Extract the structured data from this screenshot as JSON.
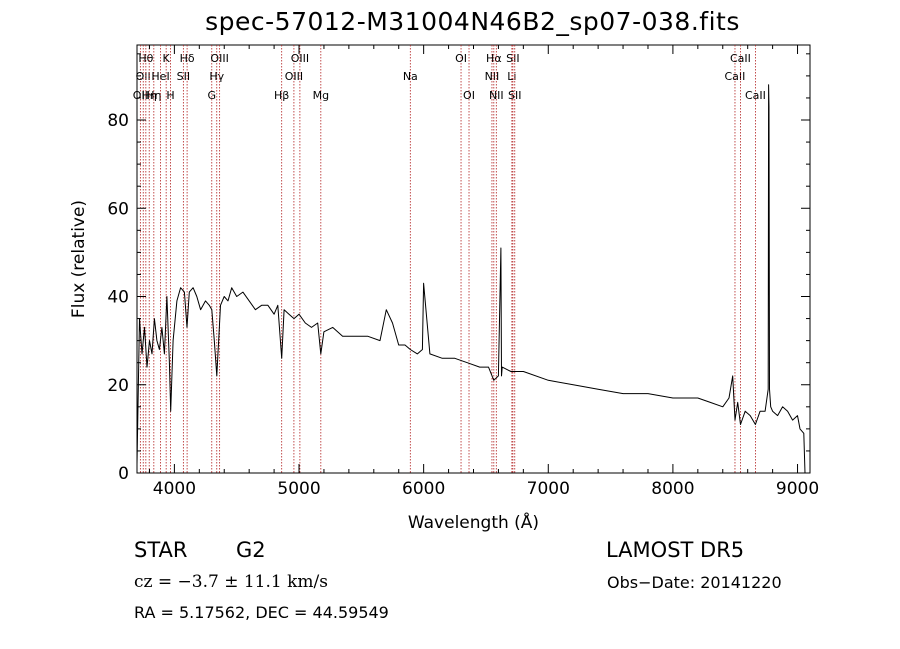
{
  "title": "spec-57012-M31004N46B2_sp07-038.fits",
  "footer": {
    "object_class": "STAR",
    "subclass": "G2",
    "survey": "LAMOST  DR5",
    "velocity": "cz = −3.7 ± 11.1 km/s",
    "obs_date": "Obs−Date: 20141220",
    "coords": "RA =    5.17562, DEC =  44.59549"
  },
  "colors": {
    "spectrum": "#000000",
    "line_markers": "#b22222",
    "axes": "#000000"
  },
  "chart_data": {
    "type": "line",
    "title": "spec-57012-M31004N46B2_sp07-038.fits",
    "xlabel": "Wavelength (Å)",
    "ylabel": "Flux (relative)",
    "xlim": [
      3700,
      9100
    ],
    "ylim": [
      0,
      97
    ],
    "xticks": [
      4000,
      5000,
      6000,
      7000,
      8000,
      9000
    ],
    "yticks": [
      0,
      20,
      40,
      60,
      80
    ],
    "grid": false,
    "series": [
      {
        "x": [
          3700,
          3720,
          3740,
          3760,
          3780,
          3800,
          3820,
          3840,
          3860,
          3880,
          3900,
          3920,
          3940,
          3960,
          3970,
          3990,
          4020,
          4050,
          4080,
          4101,
          4120,
          4150,
          4180,
          4210,
          4250,
          4280,
          4300,
          4320,
          4340,
          4370,
          4400,
          4430,
          4460,
          4500,
          4550,
          4600,
          4650,
          4700,
          4750,
          4800,
          4830,
          4861,
          4880,
          4920,
          4960,
          5000,
          5050,
          5100,
          5150,
          5175,
          5200,
          5270,
          5350,
          5450,
          5550,
          5650,
          5700,
          5750,
          5800,
          5850,
          5893,
          5950,
          5990,
          6000,
          6050,
          6150,
          6250,
          6350,
          6450,
          6520,
          6563,
          6600,
          6620,
          6625,
          6630,
          6700,
          6800,
          7000,
          7200,
          7400,
          7600,
          7800,
          8000,
          8200,
          8300,
          8400,
          8450,
          8480,
          8498,
          8520,
          8542,
          8580,
          8620,
          8662,
          8700,
          8740,
          8765,
          8768,
          8771,
          8775,
          8785,
          8800,
          8840,
          8880,
          8920,
          8960,
          9000,
          9020,
          9050,
          9060
        ],
        "y": [
          2,
          35,
          27,
          33,
          24,
          30,
          27,
          35,
          30,
          28,
          33,
          27,
          40,
          25,
          14,
          30,
          39,
          42,
          41,
          33,
          41,
          42,
          40,
          37,
          39,
          38,
          37,
          30,
          22,
          38,
          40,
          39,
          42,
          40,
          41,
          39,
          37,
          38,
          38,
          36,
          38,
          26,
          37,
          36,
          35,
          36,
          34,
          33,
          34,
          27,
          32,
          33,
          31,
          31,
          31,
          30,
          37,
          34,
          29,
          29,
          28,
          27,
          28,
          43,
          27,
          26,
          26,
          25,
          24,
          24,
          21,
          22,
          51,
          22,
          24,
          23,
          23,
          21,
          20,
          19,
          18,
          18,
          17,
          17,
          16,
          15,
          17,
          22,
          12,
          16,
          11,
          14,
          13,
          11,
          14,
          14,
          19,
          88,
          83,
          19,
          15,
          14,
          13,
          15,
          14,
          12,
          13,
          10,
          9,
          0
        ]
      }
    ],
    "line_markers": [
      {
        "wavelength": 3727,
        "label": "OII",
        "row": 2
      },
      {
        "wavelength": 3750,
        "label": "OII",
        "row": 1
      },
      {
        "wavelength": 3771,
        "label": "Hθ",
        "row": 0
      },
      {
        "wavelength": 3798,
        "label": "Hη",
        "row": 2
      },
      {
        "wavelength": 3835,
        "label": "Hη",
        "row": 2
      },
      {
        "wavelength": 3889,
        "label": "HeI",
        "row": 1
      },
      {
        "wavelength": 3934,
        "label": "K",
        "row": 0
      },
      {
        "wavelength": 3969,
        "label": "H",
        "row": 2
      },
      {
        "wavelength": 4072,
        "label": "SII",
        "row": 1
      },
      {
        "wavelength": 4102,
        "label": "Hδ",
        "row": 0
      },
      {
        "wavelength": 4300,
        "label": "G",
        "row": 2
      },
      {
        "wavelength": 4340,
        "label": "Hγ",
        "row": 1
      },
      {
        "wavelength": 4363,
        "label": "OIII",
        "row": 0
      },
      {
        "wavelength": 4861,
        "label": "Hβ",
        "row": 2
      },
      {
        "wavelength": 4959,
        "label": "OIII",
        "row": 1
      },
      {
        "wavelength": 5007,
        "label": "OIII",
        "row": 0
      },
      {
        "wavelength": 5175,
        "label": "Mg",
        "row": 2
      },
      {
        "wavelength": 5893,
        "label": "Na",
        "row": 1
      },
      {
        "wavelength": 6300,
        "label": "OI",
        "row": 0
      },
      {
        "wavelength": 6364,
        "label": "OI",
        "row": 2
      },
      {
        "wavelength": 6548,
        "label": "NII",
        "row": 1
      },
      {
        "wavelength": 6563,
        "label": "Hα",
        "row": 0
      },
      {
        "wavelength": 6583,
        "label": "NII",
        "row": 2
      },
      {
        "wavelength": 6708,
        "label": "Li",
        "row": 1
      },
      {
        "wavelength": 6716,
        "label": "SII",
        "row": 0
      },
      {
        "wavelength": 6731,
        "label": "SII",
        "row": 2
      },
      {
        "wavelength": 8498,
        "label": "CaII",
        "row": 1
      },
      {
        "wavelength": 8542,
        "label": "CaII",
        "row": 0
      },
      {
        "wavelength": 8662,
        "label": "CaII",
        "row": 2
      }
    ]
  }
}
